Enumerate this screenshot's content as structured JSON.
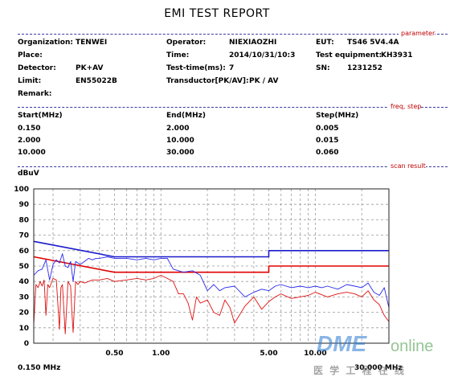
{
  "report": {
    "title": "EMI TEST REPORT"
  },
  "sections": {
    "parameter": "parameter",
    "freq_step": "freq, step",
    "scan_result": "scan result"
  },
  "parameters": {
    "organization_label": "Organization:",
    "organization": "TENWEI",
    "operator_label": "Operator:",
    "operator": "NIEXIAOZHI",
    "eut_label": "EUT:",
    "eut": "TS46 5V4.4A",
    "place_label": "Place:",
    "time_label": "Time:",
    "time": "2014/10/31/10:3",
    "test_equipment_label": "Test equipment:",
    "test_equipment": "KH3931",
    "detector_label": "Detector:",
    "detector": "PK+AV",
    "test_time_label": "Test-time(ms):",
    "test_time": "7",
    "sn_label": "SN:",
    "sn": "1231252",
    "limit_label": "Limit:",
    "limit": "EN55022B",
    "transductor_label": "Transductor[PK/AV]:",
    "transductor": "PK  /  AV",
    "remark_label": "Remark:"
  },
  "freq_table": {
    "headers": [
      "Start(MHz)",
      "End(MHz)",
      "Step(MHz)"
    ],
    "rows": [
      [
        "0.150",
        "2.000",
        "0.005"
      ],
      [
        "2.000",
        "10.000",
        "0.015"
      ],
      [
        "10.000",
        "30.000",
        "0.060"
      ]
    ]
  },
  "watermark": {
    "brand_a": "DME",
    "brand_b": "online",
    "tagline": "医 学 工 程 在 线"
  },
  "colors": {
    "limit_qp": "#1a1acc",
    "limit_av": "#e00000",
    "trace_pk": "#2a2aee",
    "trace_av": "#e01010",
    "grid": "#9a9a9a",
    "section_line": "#3a3aa0",
    "section_label": "#c00000"
  },
  "chart_data": {
    "type": "line",
    "ylabel": "dBuV",
    "xlabel_start": "0.150 MHz",
    "xlabel_end": "30.000 MHz",
    "x_scale": "log",
    "xlim": [
      0.15,
      30
    ],
    "ylim": [
      0,
      100
    ],
    "y_ticks": [
      0,
      10,
      20,
      30,
      40,
      50,
      60,
      70,
      80,
      90,
      100
    ],
    "x_ticks": [
      {
        "value": 0.5,
        "label": "0.50"
      },
      {
        "value": 1.0,
        "label": "1.00"
      },
      {
        "value": 5.0,
        "label": "5.00"
      },
      {
        "value": 10.0,
        "label": "10.00"
      }
    ],
    "grid": true,
    "series": [
      {
        "key": "limit_qp",
        "x": [
          0.15,
          0.5,
          5.0,
          5.0,
          30.0
        ],
        "y": [
          66,
          56,
          56,
          60,
          60
        ]
      },
      {
        "key": "limit_av",
        "x": [
          0.15,
          0.5,
          5.0,
          5.0,
          30.0
        ],
        "y": [
          56,
          46,
          46,
          50,
          50
        ]
      },
      {
        "key": "trace_pk",
        "x": [
          0.15,
          0.16,
          0.17,
          0.18,
          0.19,
          0.2,
          0.21,
          0.22,
          0.23,
          0.24,
          0.25,
          0.26,
          0.27,
          0.28,
          0.3,
          0.32,
          0.34,
          0.36,
          0.38,
          0.4,
          0.45,
          0.5,
          0.6,
          0.7,
          0.8,
          0.9,
          1.0,
          1.1,
          1.2,
          1.4,
          1.6,
          1.8,
          2.0,
          2.2,
          2.4,
          2.6,
          3.0,
          3.5,
          4.0,
          4.5,
          5.0,
          5.5,
          6.0,
          7.0,
          8.0,
          9.0,
          10.0,
          11.0,
          12.0,
          14.0,
          16.0,
          18.0,
          20.0,
          22.0,
          24.0,
          26.0,
          28.0,
          30.0
        ],
        "y": [
          44,
          47,
          48,
          54,
          41,
          51,
          54,
          52,
          58,
          50,
          49,
          53,
          40,
          53,
          51,
          53,
          55,
          54,
          55,
          55,
          56,
          55,
          55,
          54,
          55,
          54,
          55,
          55,
          48,
          46,
          47,
          44,
          34,
          38,
          34,
          36,
          37,
          30,
          33,
          35,
          34,
          37,
          38,
          36,
          37,
          36,
          37,
          36,
          37,
          35,
          38,
          37,
          36,
          39,
          33,
          31,
          36,
          23
        ]
      },
      {
        "key": "trace_av",
        "x": [
          0.15,
          0.155,
          0.16,
          0.165,
          0.17,
          0.175,
          0.18,
          0.185,
          0.19,
          0.2,
          0.21,
          0.22,
          0.225,
          0.23,
          0.24,
          0.25,
          0.26,
          0.265,
          0.27,
          0.28,
          0.29,
          0.3,
          0.32,
          0.34,
          0.36,
          0.4,
          0.45,
          0.5,
          0.6,
          0.7,
          0.8,
          0.9,
          1.0,
          1.1,
          1.2,
          1.3,
          1.4,
          1.5,
          1.6,
          1.7,
          1.8,
          2.0,
          2.2,
          2.4,
          2.6,
          2.8,
          3.0,
          3.5,
          4.0,
          4.5,
          5.0,
          5.5,
          6.0,
          7.0,
          8.0,
          9.0,
          10.0,
          12.0,
          14.0,
          16.0,
          18.0,
          20.0,
          22.0,
          24.0,
          26.0,
          28.0,
          30.0
        ],
        "y": [
          12,
          38,
          36,
          40,
          37,
          41,
          18,
          38,
          36,
          42,
          41,
          9,
          36,
          38,
          6,
          40,
          37,
          20,
          7,
          40,
          38,
          40,
          39,
          40,
          41,
          41,
          42,
          40,
          41,
          42,
          41,
          42,
          44,
          42,
          40,
          32,
          32,
          26,
          15,
          30,
          26,
          28,
          20,
          18,
          28,
          23,
          13,
          24,
          30,
          22,
          27,
          30,
          32,
          29,
          30,
          31,
          33,
          30,
          32,
          33,
          32,
          30,
          34,
          28,
          25,
          18,
          14
        ]
      }
    ]
  }
}
